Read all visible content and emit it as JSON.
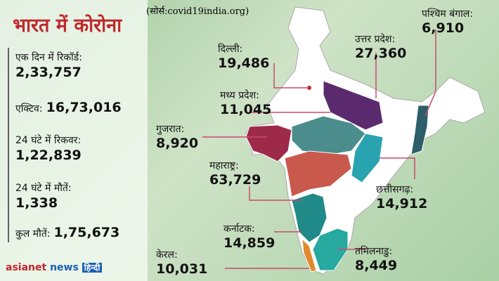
{
  "header": {
    "title": "भारत में कोरोना",
    "source": "(सोर्स:covid19india.org)"
  },
  "stats": [
    {
      "label": "एक दिन में रिकॉर्ड:",
      "value": "2,33,757"
    },
    {
      "label": "एक्टिव:",
      "value": "16,73,016"
    },
    {
      "label": "24 घंटे में रिकवर:",
      "value": "1,22,839"
    },
    {
      "label": "24 घंटे में मौतें:",
      "value": "1,338"
    },
    {
      "label": "कुल मौतें:",
      "value": "1,75,673"
    }
  ],
  "states": [
    {
      "name": "दिल्ली:",
      "value": "19,486"
    },
    {
      "name": "मध्य प्रदेश:",
      "value": "11,045"
    },
    {
      "name": "गुजरात:",
      "value": "8,920"
    },
    {
      "name": "महाराष्ट्र:",
      "value": "63,729"
    },
    {
      "name": "कर्नाटक:",
      "value": "14,859"
    },
    {
      "name": "केरल:",
      "value": "10,031"
    },
    {
      "name": "तमिलनाडु:",
      "value": "8,449"
    },
    {
      "name": "छत्तीसगढ़:",
      "value": "14,912"
    },
    {
      "name": "उत्तर प्रदेश:",
      "value": "27,360"
    },
    {
      "name": "पश्चिम बंगाल:",
      "value": "6,910"
    }
  ],
  "logo": {
    "brand": "asianet",
    "news": "news",
    "lang": "हिन्दी"
  }
}
